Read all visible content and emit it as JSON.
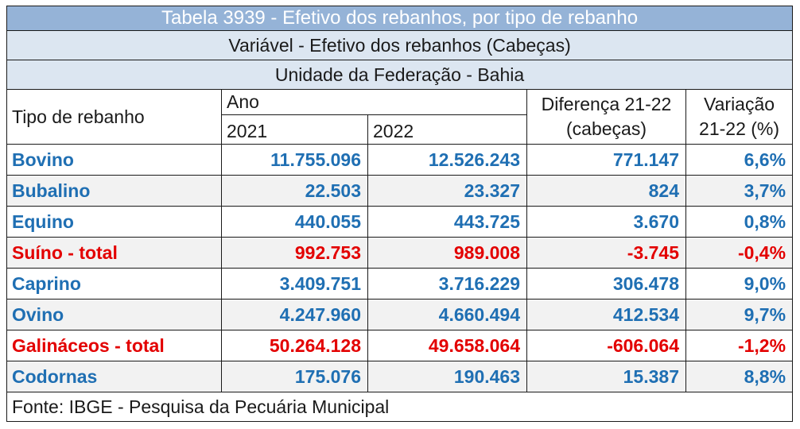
{
  "title": "Tabela 3939 - Efetivo dos rebanhos, por tipo de rebanho",
  "variable": "Variável - Efetivo dos rebanhos (Cabeças)",
  "unit": "Unidade da Federação - Bahia",
  "headers": {
    "tipo": "Tipo de rebanho",
    "ano": "Ano",
    "y2021": "2021",
    "y2022": "2022",
    "diferenca": "Diferença 21-22",
    "cabecas": "(cabeças)",
    "variacao": "Variação",
    "pct": "21-22 (%)"
  },
  "rows": [
    {
      "tipo": "Bovino",
      "v2021": "11.755.096",
      "v2022": "12.526.243",
      "diff": "771.147",
      "var": "6,6%",
      "color": "#1f6fb3"
    },
    {
      "tipo": "Bubalino",
      "v2021": "22.503",
      "v2022": "23.327",
      "diff": "824",
      "var": "3,7%",
      "color": "#1f6fb3"
    },
    {
      "tipo": "Equino",
      "v2021": "440.055",
      "v2022": "443.725",
      "diff": "3.670",
      "var": "0,8%",
      "color": "#1f6fb3"
    },
    {
      "tipo": "Suíno - total",
      "v2021": "992.753",
      "v2022": "989.008",
      "diff": "-3.745",
      "var": "-0,4%",
      "color": "#e30000"
    },
    {
      "tipo": "Caprino",
      "v2021": "3.409.751",
      "v2022": "3.716.229",
      "diff": "306.478",
      "var": "9,0%",
      "color": "#1f6fb3"
    },
    {
      "tipo": "Ovino",
      "v2021": "4.247.960",
      "v2022": "4.660.494",
      "diff": "412.534",
      "var": "9,7%",
      "color": "#1f6fb3"
    },
    {
      "tipo": "Galináceos - total",
      "v2021": "50.264.128",
      "v2022": "49.658.064",
      "diff": "-606.064",
      "var": "-1,2%",
      "color": "#e30000"
    },
    {
      "tipo": "Codornas",
      "v2021": "175.076",
      "v2022": "190.463",
      "diff": "15.387",
      "var": "8,8%",
      "color": "#1f6fb3"
    }
  ],
  "source": "Fonte: IBGE - Pesquisa da Pecuária Municipal",
  "colors": {
    "title_bg": "#95b3d7",
    "subheader_bg": "#dce6f1",
    "positive": "#1f6fb3",
    "negative": "#e30000"
  }
}
